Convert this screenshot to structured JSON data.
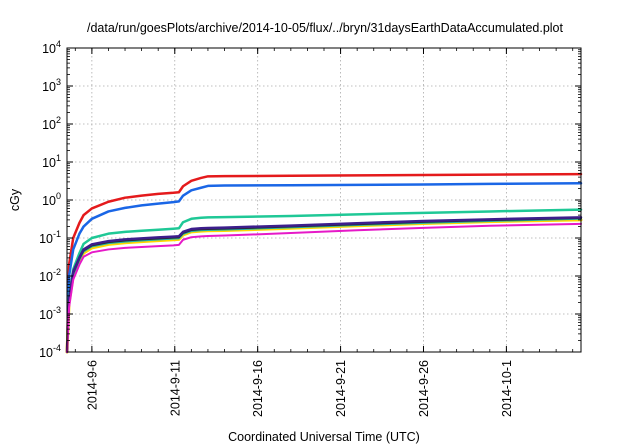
{
  "chart_data": {
    "type": "line",
    "title": "/data/run/goesPlots/archive/2014-10-05/flux/../bryn/31daysEarthDataAccumulated.plot",
    "xlabel": "Coordinated Universal Time (UTC)",
    "ylabel": "cGy",
    "y_scale": "log",
    "ylim": [
      0.0001,
      10000
    ],
    "xlim": [
      "2014-09-04T12:00",
      "2014-10-05T12:00"
    ],
    "grid": true,
    "legend": "none",
    "y_ticks": [
      {
        "base": "10",
        "exp": "-4"
      },
      {
        "base": "10",
        "exp": "-3"
      },
      {
        "base": "10",
        "exp": "-2"
      },
      {
        "base": "10",
        "exp": "-1"
      },
      {
        "base": "10",
        "exp": "0"
      },
      {
        "base": "10",
        "exp": "1"
      },
      {
        "base": "10",
        "exp": "2"
      },
      {
        "base": "10",
        "exp": "3"
      },
      {
        "base": "10",
        "exp": "4"
      }
    ],
    "x_ticks": [
      "2014-9-6",
      "2014-9-11",
      "2014-9-16",
      "2014-9-21",
      "2014-9-26",
      "2014-10-1"
    ],
    "x_tick_dates": [
      "2014-09-06",
      "2014-09-11",
      "2014-09-16",
      "2014-09-21",
      "2014-09-26",
      "2014-10-01"
    ],
    "series": [
      {
        "color": "#e41a1c",
        "width": 2.5,
        "x": [
          "2014-09-04T12:00",
          "2014-09-04T15:00",
          "2014-09-04T21:00",
          "2014-09-05T06:00",
          "2014-09-05T12:00",
          "2014-09-06T00:00",
          "2014-09-07T00:00",
          "2014-09-08T00:00",
          "2014-09-09T00:00",
          "2014-09-10T00:00",
          "2014-09-10T22:00",
          "2014-09-11T06:00",
          "2014-09-11T12:00",
          "2014-09-12T00:00",
          "2014-09-12T14:00",
          "2014-09-13T00:00",
          "2014-09-14T00:00",
          "2014-09-18T00:00",
          "2014-09-22T00:00",
          "2014-09-26T00:00",
          "2014-09-30T00:00",
          "2014-10-05T12:00"
        ],
        "y": [
          0.0001,
          0.02,
          0.1,
          0.25,
          0.4,
          0.6,
          0.9,
          1.15,
          1.3,
          1.45,
          1.55,
          1.6,
          2.3,
          3.2,
          3.8,
          4.2,
          4.25,
          4.35,
          4.45,
          4.55,
          4.65,
          4.8
        ]
      },
      {
        "color": "#1a66e6",
        "width": 2.5,
        "x": [
          "2014-09-04T12:00",
          "2014-09-04T15:00",
          "2014-09-04T21:00",
          "2014-09-05T06:00",
          "2014-09-05T12:00",
          "2014-09-06T00:00",
          "2014-09-07T00:00",
          "2014-09-08T00:00",
          "2014-09-09T00:00",
          "2014-09-10T00:00",
          "2014-09-10T22:00",
          "2014-09-11T06:00",
          "2014-09-11T12:00",
          "2014-09-12T00:00",
          "2014-09-12T14:00",
          "2014-09-13T00:00",
          "2014-09-14T00:00",
          "2014-09-18T00:00",
          "2014-09-22T00:00",
          "2014-09-26T00:00",
          "2014-09-30T00:00",
          "2014-10-05T12:00"
        ],
        "y": [
          0.0001,
          0.01,
          0.05,
          0.13,
          0.2,
          0.32,
          0.5,
          0.62,
          0.72,
          0.8,
          0.88,
          0.92,
          1.3,
          1.8,
          2.1,
          2.35,
          2.4,
          2.45,
          2.5,
          2.55,
          2.65,
          2.75
        ]
      },
      {
        "color": "#1fc896",
        "width": 2.5,
        "x": [
          "2014-09-04T12:00",
          "2014-09-04T15:00",
          "2014-09-04T21:00",
          "2014-09-05T06:00",
          "2014-09-05T12:00",
          "2014-09-06T00:00",
          "2014-09-07T00:00",
          "2014-09-08T00:00",
          "2014-09-09T00:00",
          "2014-09-10T00:00",
          "2014-09-10T22:00",
          "2014-09-11T06:00",
          "2014-09-11T12:00",
          "2014-09-12T00:00",
          "2014-09-12T14:00",
          "2014-09-13T00:00",
          "2014-09-14T00:00",
          "2014-09-18T00:00",
          "2014-09-22T00:00",
          "2014-09-26T00:00",
          "2014-09-30T00:00",
          "2014-10-05T12:00"
        ],
        "y": [
          0.0001,
          0.003,
          0.015,
          0.04,
          0.07,
          0.1,
          0.13,
          0.145,
          0.155,
          0.165,
          0.175,
          0.18,
          0.26,
          0.32,
          0.34,
          0.35,
          0.355,
          0.38,
          0.42,
          0.46,
          0.5,
          0.56
        ]
      },
      {
        "color": "#ffd700",
        "width": 3,
        "x": [
          "2014-09-04T12:00",
          "2014-09-04T15:00",
          "2014-09-04T21:00",
          "2014-09-05T06:00",
          "2014-09-05T12:00",
          "2014-09-06T00:00",
          "2014-09-07T00:00",
          "2014-09-08T00:00",
          "2014-09-09T00:00",
          "2014-09-10T00:00",
          "2014-09-10T22:00",
          "2014-09-11T06:00",
          "2014-09-11T12:00",
          "2014-09-12T00:00",
          "2014-09-12T14:00",
          "2014-09-13T00:00",
          "2014-09-14T00:00",
          "2014-09-18T00:00",
          "2014-09-22T00:00",
          "2014-09-26T00:00",
          "2014-09-30T00:00",
          "2014-10-05T12:00"
        ],
        "y": [
          0.0001,
          0.002,
          0.01,
          0.025,
          0.04,
          0.055,
          0.068,
          0.075,
          0.08,
          0.085,
          0.09,
          0.092,
          0.12,
          0.145,
          0.152,
          0.155,
          0.158,
          0.18,
          0.21,
          0.24,
          0.27,
          0.3
        ]
      },
      {
        "color": "#20b2aa",
        "width": 2,
        "x": [
          "2014-09-04T12:00",
          "2014-09-04T15:00",
          "2014-09-04T21:00",
          "2014-09-05T06:00",
          "2014-09-05T12:00",
          "2014-09-06T00:00",
          "2014-09-07T00:00",
          "2014-09-08T00:00",
          "2014-09-09T00:00",
          "2014-09-10T00:00",
          "2014-09-10T22:00",
          "2014-09-11T06:00",
          "2014-09-11T12:00",
          "2014-09-12T00:00",
          "2014-09-12T14:00",
          "2014-09-13T00:00",
          "2014-09-14T00:00",
          "2014-09-18T00:00",
          "2014-09-22T00:00",
          "2014-09-26T00:00",
          "2014-09-30T00:00",
          "2014-10-05T12:00"
        ],
        "y": [
          0.0001,
          0.0022,
          0.011,
          0.027,
          0.044,
          0.06,
          0.073,
          0.08,
          0.086,
          0.091,
          0.096,
          0.098,
          0.128,
          0.152,
          0.16,
          0.163,
          0.166,
          0.19,
          0.22,
          0.25,
          0.28,
          0.32
        ]
      },
      {
        "color": "#2a2a2a",
        "width": 2,
        "x": [
          "2014-09-04T12:00",
          "2014-09-04T15:00",
          "2014-09-04T21:00",
          "2014-09-05T06:00",
          "2014-09-05T12:00",
          "2014-09-06T00:00",
          "2014-09-07T00:00",
          "2014-09-08T00:00",
          "2014-09-09T00:00",
          "2014-09-10T00:00",
          "2014-09-10T22:00",
          "2014-09-11T06:00",
          "2014-09-11T12:00",
          "2014-09-12T00:00",
          "2014-09-12T14:00",
          "2014-09-13T00:00",
          "2014-09-14T00:00",
          "2014-09-18T00:00",
          "2014-09-22T00:00",
          "2014-09-26T00:00",
          "2014-09-30T00:00",
          "2014-10-05T12:00"
        ],
        "y": [
          0.0001,
          0.0024,
          0.012,
          0.029,
          0.047,
          0.064,
          0.078,
          0.086,
          0.092,
          0.097,
          0.102,
          0.104,
          0.136,
          0.162,
          0.17,
          0.173,
          0.176,
          0.2,
          0.23,
          0.265,
          0.295,
          0.335
        ]
      },
      {
        "color": "#3c1e8c",
        "width": 2.5,
        "x": [
          "2014-09-04T12:00",
          "2014-09-04T15:00",
          "2014-09-04T21:00",
          "2014-09-05T06:00",
          "2014-09-05T12:00",
          "2014-09-06T00:00",
          "2014-09-07T00:00",
          "2014-09-08T00:00",
          "2014-09-09T00:00",
          "2014-09-10T00:00",
          "2014-09-10T22:00",
          "2014-09-11T06:00",
          "2014-09-11T12:00",
          "2014-09-12T00:00",
          "2014-09-12T14:00",
          "2014-09-13T00:00",
          "2014-09-14T00:00",
          "2014-09-18T00:00",
          "2014-09-22T00:00",
          "2014-09-26T00:00",
          "2014-09-30T00:00",
          "2014-10-05T12:00"
        ],
        "y": [
          0.0001,
          0.0026,
          0.013,
          0.031,
          0.05,
          0.068,
          0.083,
          0.092,
          0.098,
          0.104,
          0.109,
          0.111,
          0.145,
          0.172,
          0.18,
          0.184,
          0.188,
          0.212,
          0.245,
          0.28,
          0.31,
          0.35
        ]
      },
      {
        "color": "#e619c8",
        "width": 2,
        "x": [
          "2014-09-04T12:00",
          "2014-09-04T15:00",
          "2014-09-04T21:00",
          "2014-09-05T06:00",
          "2014-09-05T12:00",
          "2014-09-06T00:00",
          "2014-09-07T00:00",
          "2014-09-08T00:00",
          "2014-09-09T00:00",
          "2014-09-10T00:00",
          "2014-09-10T22:00",
          "2014-09-11T06:00",
          "2014-09-11T12:00",
          "2014-09-12T00:00",
          "2014-09-12T14:00",
          "2014-09-13T00:00",
          "2014-09-14T00:00",
          "2014-09-18T00:00",
          "2014-09-22T00:00",
          "2014-09-26T00:00",
          "2014-09-30T00:00",
          "2014-10-05T12:00"
        ],
        "y": [
          0.0001,
          0.0015,
          0.008,
          0.02,
          0.032,
          0.042,
          0.05,
          0.055,
          0.058,
          0.061,
          0.064,
          0.066,
          0.09,
          0.105,
          0.11,
          0.113,
          0.116,
          0.135,
          0.16,
          0.185,
          0.21,
          0.235
        ]
      }
    ]
  }
}
